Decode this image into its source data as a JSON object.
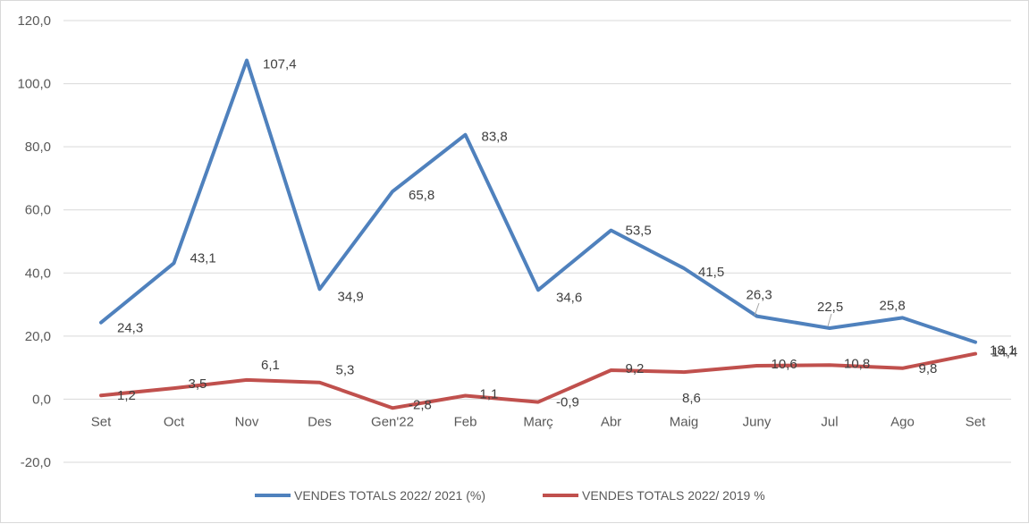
{
  "chart_data": {
    "type": "line",
    "categories": [
      "Set",
      "Oct",
      "Nov",
      "Des",
      "Gen'22",
      "Feb",
      "Març",
      "Abr",
      "Maig",
      "Juny",
      "Jul",
      "Ago",
      "Set"
    ],
    "ylim": [
      -20,
      120
    ],
    "yticks": [
      -20,
      0,
      20,
      40,
      60,
      80,
      100,
      120
    ],
    "ytick_labels": [
      "-20,0",
      "0,0",
      "20,0",
      "40,0",
      "60,0",
      "80,0",
      "100,0",
      "120,0"
    ],
    "grid": true,
    "legend_position": "bottom",
    "series": [
      {
        "name": "VENDES TOTALS 2022/ 2021 (%)",
        "color": "#4f81bd",
        "values": [
          24.3,
          43.1,
          107.4,
          34.9,
          65.8,
          83.8,
          34.6,
          53.5,
          41.5,
          26.3,
          22.5,
          25.8,
          18.1
        ],
        "labels": [
          "24,3",
          "43,1",
          "107,4",
          "34,9",
          "65,8",
          "83,8",
          "34,6",
          "53,5",
          "41,5",
          "26,3",
          "22,5",
          "25,8",
          "18,1"
        ]
      },
      {
        "name": "VENDES TOTALS 2022/ 2019 %",
        "color": "#c0504d",
        "values": [
          1.2,
          3.5,
          6.1,
          5.3,
          -2.8,
          1.1,
          -0.9,
          9.2,
          8.6,
          10.6,
          10.8,
          9.8,
          14.4
        ],
        "labels": [
          "1,2",
          "3,5",
          "6,1",
          "5,3",
          "-2,8",
          "1,1",
          "-0,9",
          "9,2",
          "8,6",
          "10,6",
          "10,8",
          "9,8",
          "14,4"
        ]
      }
    ]
  }
}
